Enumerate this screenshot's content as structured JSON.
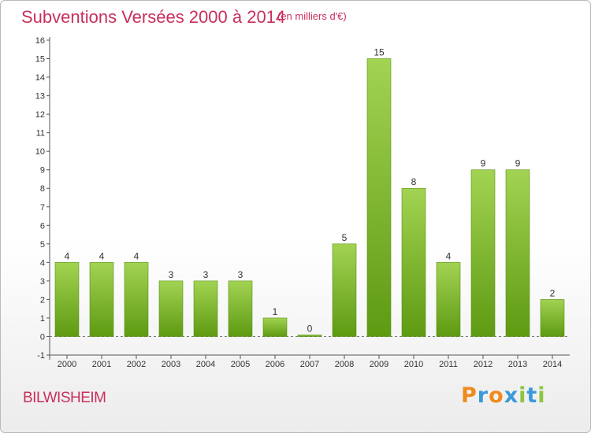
{
  "title": "Subventions Versées 2000 à 2014",
  "unit": "(en milliers d'€)",
  "commune": "BILWISHEIM",
  "logo": {
    "text": "Proxiti",
    "letters": [
      "P",
      "r",
      "o",
      "x",
      "i",
      "t",
      "i"
    ],
    "colors": [
      "#f08a1c",
      "#3a9ad9",
      "#f08a1c",
      "#3a9ad9",
      "#8cc63f",
      "#3a9ad9",
      "#8cc63f"
    ]
  },
  "colors": {
    "bar_top": "#a2d352",
    "bar_bottom": "#5e9a12",
    "bar_edge": "#5a8f14",
    "accent": "#c8305c"
  },
  "chart_data": {
    "type": "bar",
    "title": "Subventions Versées 2000 à 2014",
    "xlabel": "",
    "ylabel": "",
    "categories": [
      "2000",
      "2001",
      "2002",
      "2003",
      "2004",
      "2005",
      "2006",
      "2007",
      "2008",
      "2009",
      "2010",
      "2011",
      "2012",
      "2013",
      "2014"
    ],
    "values": [
      4,
      4,
      4,
      3,
      3,
      3,
      1,
      0,
      5,
      15,
      8,
      4,
      9,
      9,
      2
    ],
    "ylim": [
      -1,
      16
    ],
    "yticks": [
      -1,
      0,
      1,
      2,
      3,
      4,
      5,
      6,
      7,
      8,
      9,
      10,
      11,
      12,
      13,
      14,
      15,
      16
    ],
    "grid": false,
    "legend": "none"
  }
}
